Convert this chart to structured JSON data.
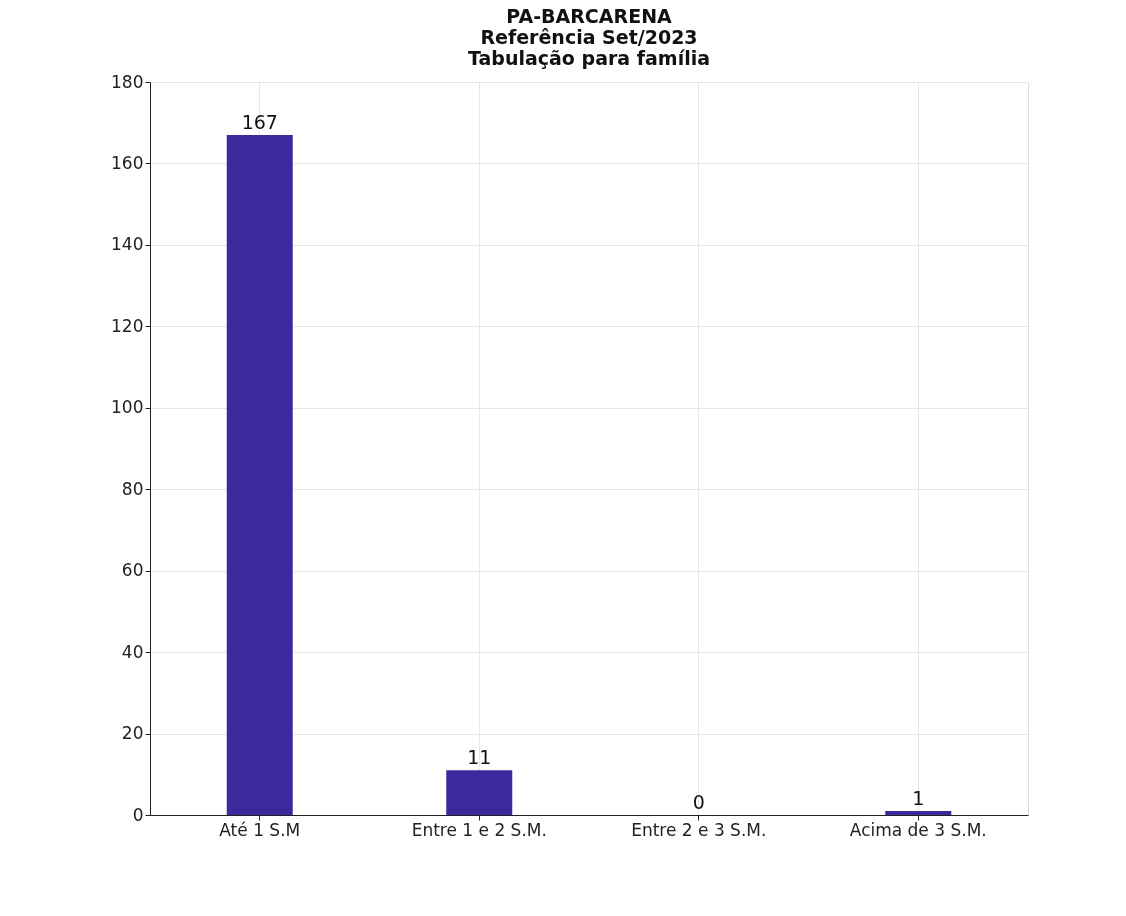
{
  "chart_data": {
    "type": "bar",
    "title": "PA-BARCARENA\nReferência Set/2023\nTabulação para família",
    "categories": [
      "Até 1 S.M",
      "Entre 1 e 2 S.M.",
      "Entre 2 e 3 S.M.",
      "Acima de 3 S.M."
    ],
    "values": [
      167,
      11,
      0,
      1
    ],
    "color": "#3a2a9e",
    "ylim": [
      0,
      180
    ],
    "yticks": [
      0,
      20,
      40,
      60,
      80,
      100,
      120,
      140,
      160,
      180
    ],
    "grid": true,
    "data_labels": true
  }
}
